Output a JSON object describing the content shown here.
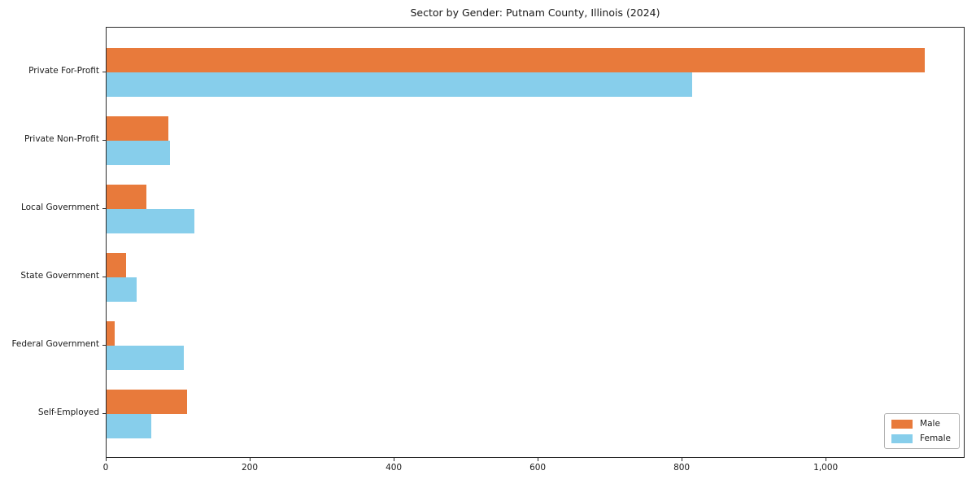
{
  "title": "Sector by Gender: Putnam County, Illinois (2024)",
  "colors": {
    "male": "#E87A3B",
    "female": "#87CEEB",
    "spine": "#2a2a2a",
    "text": "#1a1a1a",
    "legend_border": "#b3b3b3",
    "background": "#ffffff"
  },
  "chart_data": {
    "type": "bar",
    "orientation": "horizontal",
    "title": "Sector by Gender: Putnam County, Illinois (2024)",
    "categories": [
      "Private For-Profit",
      "Private Non-Profit",
      "Local Government",
      "State Government",
      "Federal Government",
      "Self-Employed"
    ],
    "series": [
      {
        "name": "Male",
        "color": "#E87A3B",
        "values": [
          1136,
          86,
          55,
          27,
          11,
          112
        ]
      },
      {
        "name": "Female",
        "color": "#87CEEB",
        "values": [
          813,
          88,
          122,
          42,
          107,
          62
        ]
      }
    ],
    "xlabel": "",
    "ylabel": "",
    "xlim": [
      0,
      1193
    ],
    "x_ticks": [
      0,
      200,
      400,
      600,
      800,
      1000
    ],
    "x_tick_labels": [
      "0",
      "200",
      "400",
      "600",
      "800",
      "1,000"
    ],
    "grid": false,
    "legend_position": "lower right"
  }
}
